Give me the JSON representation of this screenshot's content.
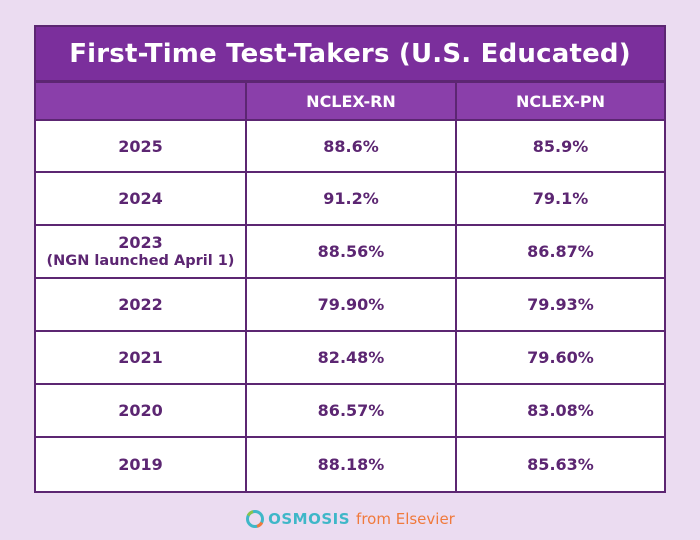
{
  "table": {
    "title": "First-Time Test-Takers (U.S. Educated)",
    "headers": [
      "",
      "NCLEX-RN",
      "NCLEX-PN"
    ],
    "rows": [
      {
        "year": "2025",
        "note": "",
        "rn": "88.6%",
        "pn": "85.9%"
      },
      {
        "year": "2024",
        "note": "",
        "rn": "91.2%",
        "pn": "79.1%"
      },
      {
        "year": "2023",
        "note": "(NGN launched April 1)",
        "rn": "88.56%",
        "pn": "86.87%"
      },
      {
        "year": "2022",
        "note": "",
        "rn": "79.90%",
        "pn": "79.93%"
      },
      {
        "year": "2021",
        "note": "",
        "rn": "82.48%",
        "pn": "79.60%"
      },
      {
        "year": "2020",
        "note": "",
        "rn": "86.57%",
        "pn": "83.08%"
      },
      {
        "year": "2019",
        "note": "",
        "rn": "88.18%",
        "pn": "85.63%"
      }
    ]
  },
  "footer": {
    "brand": "OSMOSIS",
    "tagline": "from Elsevier",
    "logo_icon": "osmosis-o-logo-icon"
  },
  "colors": {
    "background": "#ebdcf1",
    "title_bar": "#7b2f9c",
    "header_cells": "#8a3faa",
    "grid": "#5c2672",
    "cell_text": "#5c2672",
    "brand": "#3fb7c8",
    "tagline": "#f07a3d"
  }
}
